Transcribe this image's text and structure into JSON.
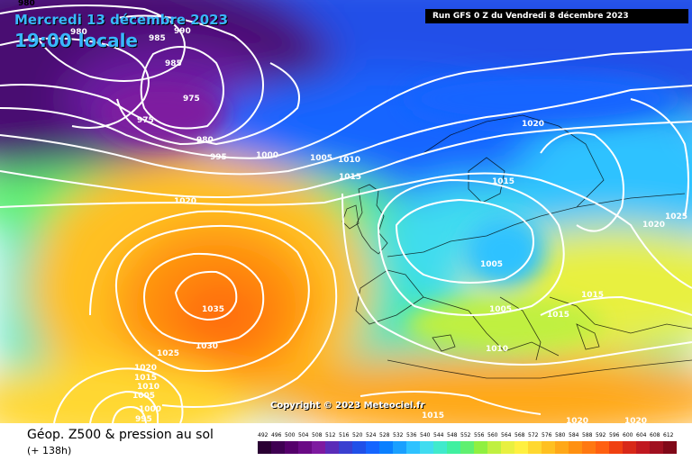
{
  "header": {
    "date": "Mercredi 13 décembre 2023",
    "time": "19:00 locale",
    "run": "Run GFS 0 Z du Vendredi 8 décembre 2023"
  },
  "copyright": "Copyright © 2023 Meteociel.fr",
  "footer": {
    "product": "Géop. Z500 & pression au sol",
    "lead": "(+ 138h)"
  },
  "isobar_labels": [
    {
      "text": "980"
    },
    {
      "text": "985"
    },
    {
      "text": "990"
    },
    {
      "text": "985"
    },
    {
      "text": "980"
    },
    {
      "text": "975"
    },
    {
      "text": "975"
    },
    {
      "text": "980"
    },
    {
      "text": "995"
    },
    {
      "text": "1000"
    },
    {
      "text": "1005"
    },
    {
      "text": "1010"
    },
    {
      "text": "1015"
    },
    {
      "text": "1020"
    },
    {
      "text": "1015"
    },
    {
      "text": "1020"
    },
    {
      "text": "1020"
    },
    {
      "text": "1025"
    },
    {
      "text": "1005"
    },
    {
      "text": "1005"
    },
    {
      "text": "1015"
    },
    {
      "text": "1015"
    },
    {
      "text": "1010"
    },
    {
      "text": "1035"
    },
    {
      "text": "1030"
    },
    {
      "text": "1025"
    },
    {
      "text": "1020"
    },
    {
      "text": "1015"
    },
    {
      "text": "1010"
    },
    {
      "text": "1005"
    },
    {
      "text": "1000"
    },
    {
      "text": "995"
    },
    {
      "text": "1015"
    },
    {
      "text": "1020"
    },
    {
      "text": "1020"
    }
  ],
  "colors": {
    "scale": [
      "#2a0033",
      "#3f0052",
      "#55006b",
      "#6a0a85",
      "#7e1aa0",
      "#5a2cb8",
      "#3a3fd0",
      "#2050e8",
      "#1565ff",
      "#0a80ff",
      "#1aa0ff",
      "#2ec2ff",
      "#40dcf0",
      "#40eacc",
      "#40f0a0",
      "#60f070",
      "#90f040",
      "#c0f040",
      "#e8f040",
      "#fff040",
      "#ffd830",
      "#ffc020",
      "#ffa818",
      "#ff9010",
      "#ff7810",
      "#ff6010",
      "#f04010",
      "#d82818",
      "#c01820",
      "#a01020",
      "#800818",
      "#600010",
      "#400008"
    ],
    "scale_labels": [
      "492",
      "496",
      "500",
      "504",
      "508",
      "512",
      "516",
      "520",
      "524",
      "528",
      "532",
      "536",
      "540",
      "544",
      "548",
      "552",
      "556",
      "560",
      "564",
      "568",
      "572",
      "576",
      "580",
      "584",
      "588",
      "592",
      "596",
      "600",
      "604",
      "608",
      "612"
    ]
  }
}
